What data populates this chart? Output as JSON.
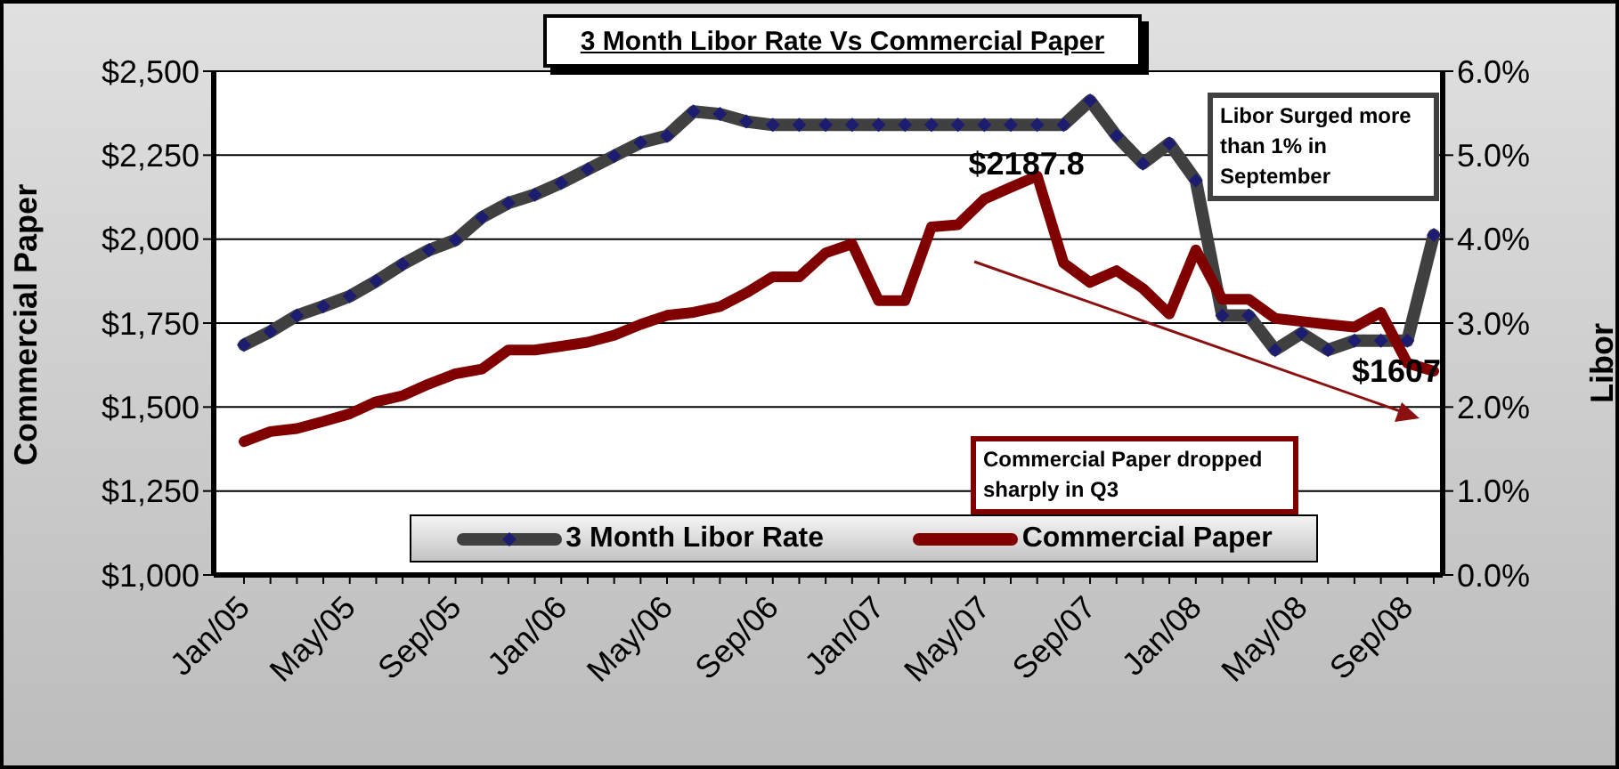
{
  "chart_data": {
    "type": "line",
    "title": "3 Month Libor Rate Vs Commercial Paper",
    "ylabel": "Commercial Paper",
    "y2label": "Libor",
    "categories": [
      "Jan/05",
      null,
      null,
      null,
      "May/05",
      null,
      null,
      null,
      "Sep/05",
      null,
      null,
      null,
      "Jan/06",
      null,
      null,
      null,
      "May/06",
      null,
      null,
      null,
      "Sep/06",
      null,
      null,
      null,
      "Jan/07",
      null,
      null,
      null,
      "May/07",
      null,
      null,
      null,
      "Sep/07",
      null,
      null,
      null,
      "Jan/08",
      null,
      null,
      null,
      "May/08",
      null,
      null,
      null,
      "Sep/08",
      null
    ],
    "series": [
      {
        "name": "3 Month Libor Rate",
        "type": "line",
        "axis": "y2",
        "color": "#404040",
        "marker": "diamond",
        "values": [
          2.74,
          2.9,
          3.09,
          3.2,
          3.32,
          3.5,
          3.7,
          3.87,
          3.99,
          4.26,
          4.43,
          4.53,
          4.67,
          4.83,
          4.99,
          5.15,
          5.23,
          5.52,
          5.49,
          5.4,
          5.36,
          5.36,
          5.36,
          5.36,
          5.36,
          5.36,
          5.36,
          5.36,
          5.36,
          5.36,
          5.36,
          5.36,
          5.65,
          5.23,
          4.9,
          5.14,
          4.7,
          3.09,
          3.09,
          2.68,
          2.88,
          2.68,
          2.79,
          2.79,
          2.79,
          4.05
        ]
      },
      {
        "name": "Commercial Paper",
        "type": "line",
        "color": "#800000",
        "marker": "none",
        "values": [
          1397,
          1427,
          1436,
          1457,
          1480,
          1516,
          1534,
          1569,
          1599,
          1613,
          1670,
          1670,
          1681,
          1693,
          1714,
          1746,
          1773,
          1782,
          1799,
          1840,
          1888,
          1888,
          1959,
          1986,
          1817,
          1817,
          2036,
          2043,
          2119,
          2154,
          2187.8,
          1929,
          1871,
          1906,
          1853,
          1777,
          1968,
          1821,
          1821,
          1764,
          1755,
          1746,
          1738,
          1782,
          1631,
          1607
        ],
        "value_labels": [
          null,
          null,
          null,
          null,
          null,
          null,
          null,
          null,
          null,
          null,
          null,
          null,
          null,
          null,
          null,
          null,
          null,
          null,
          null,
          null,
          null,
          null,
          null,
          null,
          null,
          null,
          null,
          null,
          null,
          null,
          "$2187.8",
          null,
          null,
          null,
          null,
          null,
          null,
          null,
          null,
          null,
          null,
          null,
          null,
          null,
          null,
          "$1607"
        ]
      }
    ],
    "ylim": [
      1000,
      2500
    ],
    "yticks": [
      {
        "value": 1000,
        "label": "$1,000"
      },
      {
        "value": 1250,
        "label": "$1,250"
      },
      {
        "value": 1500,
        "label": "$1,500"
      },
      {
        "value": 1750,
        "label": "$1,750"
      },
      {
        "value": 2000,
        "label": "$2,000"
      },
      {
        "value": 2250,
        "label": "$2,250"
      },
      {
        "value": 2500,
        "label": "$2,500"
      }
    ],
    "y2lim": [
      0,
      6
    ],
    "y2ticks": [
      {
        "value": 0,
        "label": "0.0%"
      },
      {
        "value": 1,
        "label": "1.0%"
      },
      {
        "value": 2,
        "label": "2.0%"
      },
      {
        "value": 3,
        "label": "3.0%"
      },
      {
        "value": 4,
        "label": "4.0%"
      },
      {
        "value": 5,
        "label": "5.0%"
      },
      {
        "value": 6,
        "label": "6.0%"
      }
    ],
    "grid": "y",
    "legend": "bottom",
    "annotations": [
      "Libor Surged more than 1% in September",
      "Commercial Paper dropped sharply in Q3"
    ]
  }
}
